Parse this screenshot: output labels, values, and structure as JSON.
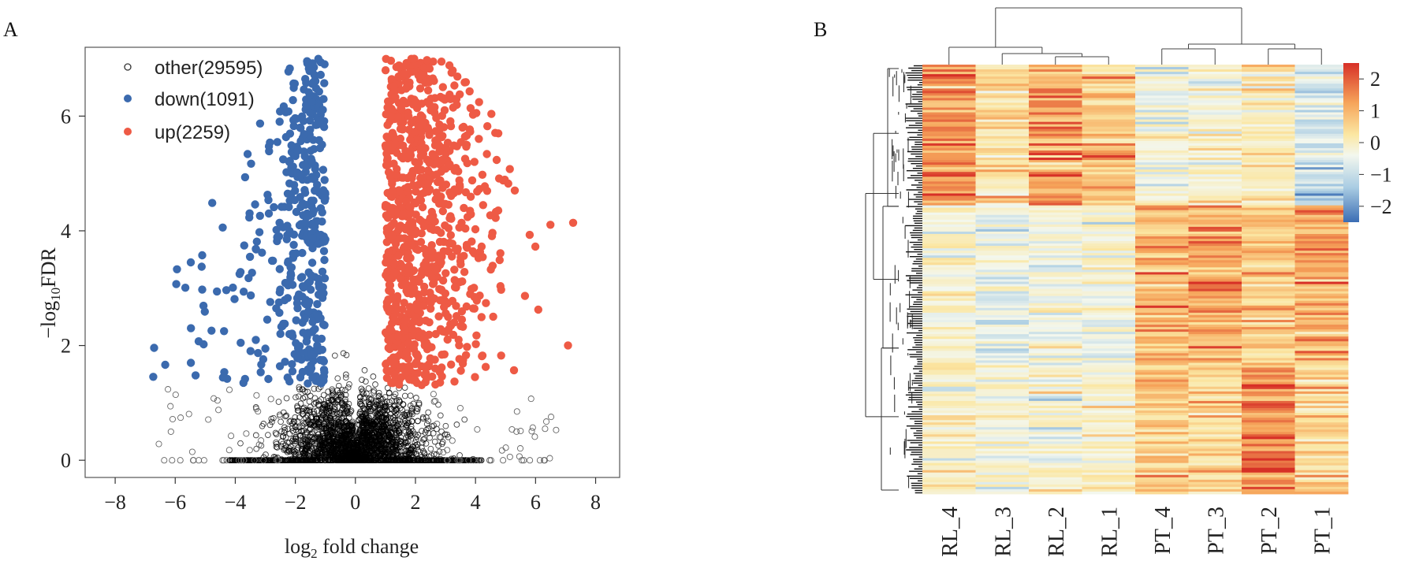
{
  "chart_data": [
    {
      "panel": "A",
      "type": "scatter",
      "title": "",
      "xlabel_main": "log",
      "xlabel_sub": "2",
      "xlabel_rest": " fold change",
      "ylabel_pre": "−log",
      "ylabel_sub": "10",
      "ylabel_rest": "FDR",
      "xlim": [
        -9,
        8.8
      ],
      "ylim": [
        -0.3,
        7.2
      ],
      "xticks": [
        -8,
        -6,
        -4,
        -2,
        0,
        2,
        4,
        6,
        8
      ],
      "xtick_labels": [
        "−8",
        "−6",
        "−4",
        "−2",
        "0",
        "2",
        "4",
        "6",
        "8"
      ],
      "yticks": [
        0,
        2,
        4,
        6
      ],
      "ytick_labels": [
        "0",
        "2",
        "4",
        "6"
      ],
      "legend_position": "top-left",
      "series": [
        {
          "name": "other(29595)",
          "color": "#000000",
          "marker": "open-circle",
          "count": 29595
        },
        {
          "name": "down(1091)",
          "color": "#3b6aae",
          "marker": "filled-circle",
          "count": 1091
        },
        {
          "name": "up(2259)",
          "color": "#ee5a45",
          "marker": "filled-circle",
          "count": 2259
        }
      ],
      "thresholds": {
        "log2fc": 1,
        "neg_log10_fdr": 1.3
      }
    },
    {
      "panel": "B",
      "type": "heatmap",
      "title": "",
      "columns": [
        "RL_4",
        "RL_3",
        "RL_2",
        "RL_1",
        "PT_4",
        "PT_3",
        "PT_2",
        "PT_1"
      ],
      "color_scale": {
        "min": -2.5,
        "max": 2.5,
        "colors": [
          "#3b6db4",
          "#aacde3",
          "#f3f7ee",
          "#fbe7a3",
          "#f6a45a",
          "#d73027"
        ],
        "ticks": [
          2,
          1,
          0,
          -1,
          -2
        ],
        "tick_labels": [
          "2",
          "1",
          "0",
          "−1",
          "−2"
        ]
      },
      "column_clusters": [
        [
          "RL_4",
          "RL_3",
          "RL_2",
          "RL_1"
        ],
        [
          "PT_4",
          "PT_3",
          "PT_2",
          "PT_1"
        ]
      ],
      "row_groups": [
        {
          "share": 0.33,
          "values": [
            1.5,
            0.6,
            1.4,
            1.0,
            -0.4,
            -0.2,
            0.2,
            -1.0
          ]
        },
        {
          "share": 0.37,
          "values": [
            -0.1,
            -0.5,
            -0.4,
            -0.3,
            1.2,
            1.4,
            0.9,
            1.3
          ]
        },
        {
          "share": 0.3,
          "values": [
            0.1,
            -0.3,
            -0.2,
            -0.1,
            0.9,
            0.7,
            1.6,
            0.7
          ]
        }
      ]
    }
  ]
}
